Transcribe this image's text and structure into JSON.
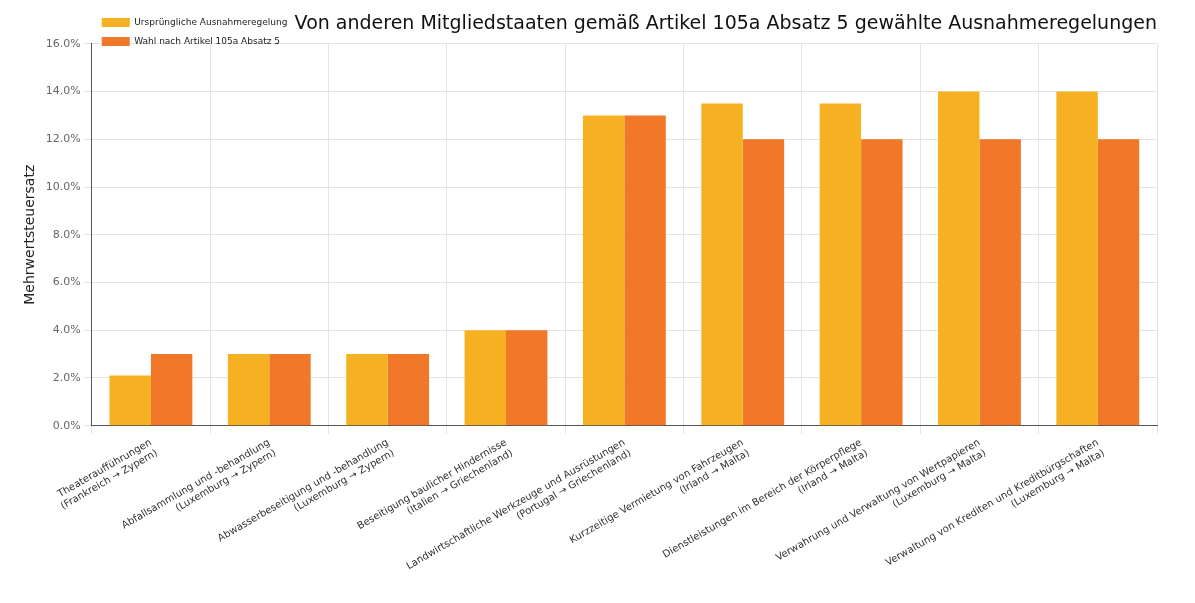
{
  "chart_data": {
    "type": "bar",
    "title": "Von anderen Mitgliedstaaten gemäß Artikel 105a Absatz 5 gewählte Ausnahmeregelungen",
    "ylabel": "Mehrwertsteuersatz",
    "categories": [
      "Theateraufführungen\n(Frankreich → Zypern)",
      "Abfallsammlung und -behandlung\n(Luxemburg → Zypern)",
      "Abwasserbeseitigung und -behandlung\n(Luxemburg → Zypern)",
      "Beseitigung baulicher Hindernisse\n(Italien → Griechenland)",
      "Landwirtschaftliche Werkzeuge und Ausrüstungen\n(Portugal → Griechenland)",
      "Kurzzeitige Vermietung von Fahrzeugen\n(Irland → Malta)",
      "Dienstleistungen im Bereich der Körperpflege\n(Irland → Malta)",
      "Verwahrung und Verwaltung von Wertpapieren\n(Luxemburg → Malta)",
      "Verwaltung von Krediten und Kreditbürgschaften\n(Luxemburg → Malta)"
    ],
    "series": [
      {
        "name": "Ursprüngliche Ausnahmeregelung",
        "color": "#f5b122",
        "values": [
          2.1,
          3,
          3,
          4,
          13,
          13.5,
          13.5,
          14,
          14
        ]
      },
      {
        "name": "Wahl nach Artikel 105a Absatz 5",
        "color": "#f07828",
        "values": [
          3,
          3,
          3,
          4,
          13,
          12,
          12,
          12,
          12
        ]
      }
    ],
    "ylim": [
      0,
      16
    ],
    "yticks": [
      {
        "value": 0,
        "label": "0.0%"
      },
      {
        "value": 2,
        "label": "2.0%"
      },
      {
        "value": 4,
        "label": "4.0%"
      },
      {
        "value": 6,
        "label": "6.0%"
      },
      {
        "value": 8,
        "label": "8.0%"
      },
      {
        "value": 10,
        "label": "10.0%"
      },
      {
        "value": 12,
        "label": "12.0%"
      },
      {
        "value": 14,
        "label": "14.0%"
      },
      {
        "value": 16,
        "label": "16.0%"
      }
    ],
    "grid": true,
    "legend": "top left"
  }
}
